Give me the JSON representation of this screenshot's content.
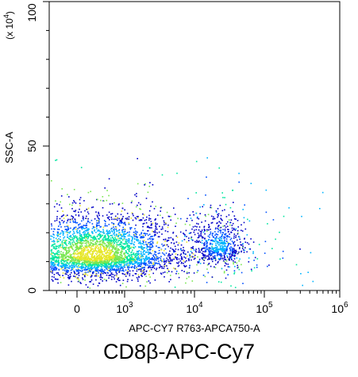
{
  "chart_data": {
    "type": "scatter",
    "title": "",
    "xlabel": "APC-CY7 R763-APCA750-A",
    "ylabel": "SSC-A",
    "y_unit": "(x 10",
    "y_unit_exp": "4",
    "y_unit_close": ")",
    "x_scale": "biexponential",
    "xlim": [
      -300,
      1000000
    ],
    "ylim": [
      0,
      100
    ],
    "grid": false,
    "y_ticks": [
      {
        "value": 0,
        "label": "0"
      },
      {
        "value": 50,
        "label": "50"
      },
      {
        "value": 100,
        "label": "100"
      }
    ],
    "x_ticks": [
      {
        "value": 0,
        "base": "0",
        "exp": ""
      },
      {
        "value": 1000,
        "base": "10",
        "exp": "3"
      },
      {
        "value": 10000,
        "base": "10",
        "exp": "4"
      },
      {
        "value": 100000,
        "base": "10",
        "exp": "5"
      },
      {
        "value": 1000000,
        "base": "10",
        "exp": "6"
      }
    ],
    "density_colors": [
      "#0000c8",
      "#0050ff",
      "#00b4ff",
      "#00e6a0",
      "#78e650",
      "#e6e628"
    ],
    "populations": [
      {
        "center_x": 200,
        "center_y": 12,
        "count": 4200,
        "spread_decades": 0.55,
        "spread_y": 6
      },
      {
        "center_x": 22000,
        "center_y": 15,
        "count": 650,
        "spread_decades": 0.18,
        "spread_y": 4.5
      }
    ],
    "caption": "CD8β-APC-Cy7"
  }
}
